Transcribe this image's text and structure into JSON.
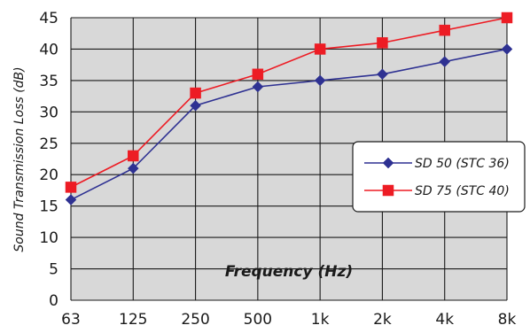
{
  "chart_data": {
    "type": "line",
    "categories": [
      "63",
      "125",
      "250",
      "500",
      "1k",
      "2k",
      "4k",
      "8k"
    ],
    "series": [
      {
        "name": "SD 50 (STC 36)",
        "values": [
          16,
          21,
          31,
          34,
          35,
          36,
          38,
          40
        ],
        "color": "#2e3192",
        "marker": "diamond"
      },
      {
        "name": "SD 75 (STC 40)",
        "values": [
          18,
          23,
          33,
          36,
          40,
          41,
          43,
          45
        ],
        "color": "#ed1c24",
        "marker": "square"
      }
    ],
    "xlabel": "Frequency (Hz)",
    "ylabel": "Sound Transmission Loss (dB)",
    "ylim": [
      0,
      45
    ],
    "yticks": [
      "0",
      "5",
      "10",
      "15",
      "20",
      "25",
      "30",
      "35",
      "40",
      "45"
    ],
    "grid": true,
    "legend": "right",
    "background": "#d8d8d8"
  }
}
